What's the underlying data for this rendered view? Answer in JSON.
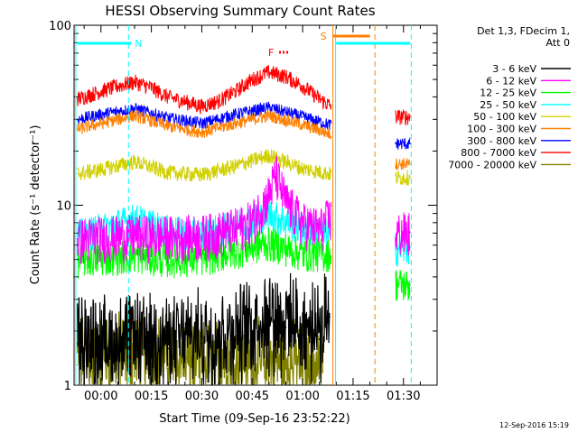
{
  "chart_data": {
    "type": "line",
    "title": "HESSI Observing Summary Count Rates",
    "xlabel": "Start Time (09-Sep-16 23:52:22)",
    "ylabel": "Count Rate (s⁻¹ detector⁻¹)",
    "yscale": "log",
    "ylim": [
      1,
      100
    ],
    "xlim_minutes": [
      -8,
      100
    ],
    "x_ticks": [
      "00:00",
      "00:15",
      "00:30",
      "00:45",
      "01:00",
      "01:15",
      "01:30"
    ],
    "y_ticks": [
      "1",
      "10",
      "100"
    ],
    "legend_title": "Det 1,3, FDecim 1,\nAtt 0",
    "legend_placement": "right",
    "series": [
      {
        "name": "3 - 6 keV",
        "color": "#000000",
        "x": [
          -7,
          0,
          5,
          10,
          15,
          20,
          30,
          40,
          45,
          50,
          55,
          60,
          65,
          68
        ],
        "values": [
          1.7,
          1.6,
          1.6,
          1.7,
          1.6,
          1.6,
          1.7,
          1.8,
          2.0,
          2.3,
          2.1,
          1.9,
          1.8,
          2.4
        ]
      },
      {
        "name": "6 - 12 keV",
        "color": "#ff00ff",
        "x": [
          -7,
          0,
          10,
          20,
          30,
          40,
          45,
          50,
          52,
          55,
          60,
          65,
          68,
          88,
          92
        ],
        "values": [
          6.5,
          6.7,
          6.8,
          6.7,
          6.8,
          7.4,
          8.2,
          11.5,
          15.0,
          10.5,
          8.0,
          7.4,
          8.5,
          7.0,
          7.1
        ]
      },
      {
        "name": "12 - 25 keV",
        "color": "#00ff00",
        "x": [
          -7,
          0,
          10,
          20,
          30,
          40,
          50,
          60,
          68,
          88,
          92
        ],
        "values": [
          5.0,
          5.1,
          5.3,
          5.0,
          5.1,
          5.6,
          6.2,
          5.4,
          5.4,
          3.7,
          3.6
        ]
      },
      {
        "name": "25 - 50 keV",
        "color": "#00ffff",
        "x": [
          -7,
          0,
          10,
          20,
          30,
          40,
          50,
          60,
          68,
          88,
          92
        ],
        "values": [
          6.8,
          7.4,
          8.4,
          7.2,
          6.9,
          7.8,
          9.0,
          7.5,
          7.0,
          5.8,
          5.8
        ]
      },
      {
        "name": "50 - 100 keV",
        "color": "#d0d000",
        "x": [
          -7,
          0,
          10,
          20,
          30,
          40,
          50,
          60,
          68,
          88,
          92
        ],
        "values": [
          15.0,
          15.8,
          17.5,
          15.2,
          14.8,
          16.5,
          19.0,
          16.0,
          15.0,
          14.2,
          14.3
        ]
      },
      {
        "name": "100 - 300 keV",
        "color": "#ff8000",
        "x": [
          -7,
          0,
          10,
          20,
          30,
          40,
          50,
          60,
          68,
          88,
          92
        ],
        "values": [
          26.5,
          28.5,
          31.5,
          27.5,
          25.5,
          28.5,
          31.5,
          28.0,
          25.0,
          17.0,
          17.0
        ]
      },
      {
        "name": "300 - 800 keV",
        "color": "#0000ff",
        "x": [
          -7,
          0,
          10,
          20,
          30,
          40,
          50,
          60,
          68,
          88,
          92
        ],
        "values": [
          30.0,
          32.0,
          34.5,
          30.5,
          28.5,
          32.0,
          35.0,
          31.0,
          28.0,
          22.0,
          22.0
        ]
      },
      {
        "name": "800 - 7000 keV",
        "color": "#ff0000",
        "x": [
          -7,
          0,
          5,
          10,
          15,
          20,
          30,
          35,
          40,
          45,
          50,
          55,
          60,
          65,
          68,
          88,
          92
        ],
        "values": [
          39.0,
          43.0,
          46.0,
          48.5,
          45.0,
          40.0,
          35.5,
          38.0,
          43.0,
          50.0,
          55.0,
          52.0,
          46.0,
          39.0,
          36.0,
          31.0,
          31.0
        ]
      },
      {
        "name": "7000 - 20000 keV",
        "color": "#808000",
        "x": [
          -7,
          0,
          10,
          20,
          30,
          40,
          50,
          60,
          66
        ],
        "values": [
          1.3,
          1.3,
          1.4,
          1.3,
          1.2,
          1.3,
          1.2,
          1.2,
          1.2
        ]
      }
    ],
    "annotations": {
      "night": {
        "label": "N",
        "color": "#00ffff",
        "start_minutes": -7,
        "end_minutes": 9
      },
      "flare": {
        "label": "F",
        "color": "#ff0000",
        "start_minutes": 53,
        "end_minutes": 56
      },
      "saa": {
        "label": "S",
        "color": "#ff8000",
        "start_minutes": 69,
        "end_minutes": 80
      },
      "night2": {
        "color": "#00ffff",
        "start_minutes": 70,
        "end_minutes": 92
      },
      "vlines": [
        {
          "minutes": -7.5,
          "color": "#00ffff",
          "style": "solid"
        },
        {
          "minutes": 8.2,
          "color": "#00ffff",
          "style": "dashed"
        },
        {
          "minutes": 69.0,
          "color": "#ff8000",
          "style": "solid"
        },
        {
          "minutes": 69.8,
          "color": "#00ffff",
          "style": "solid"
        },
        {
          "minutes": 81.5,
          "color": "#ff8000",
          "style": "dashed"
        },
        {
          "minutes": 92.3,
          "color": "#00ffff",
          "style": "dashed"
        }
      ]
    },
    "grid": false
  },
  "footer_timestamp": "12-Sep-2016 15:19"
}
